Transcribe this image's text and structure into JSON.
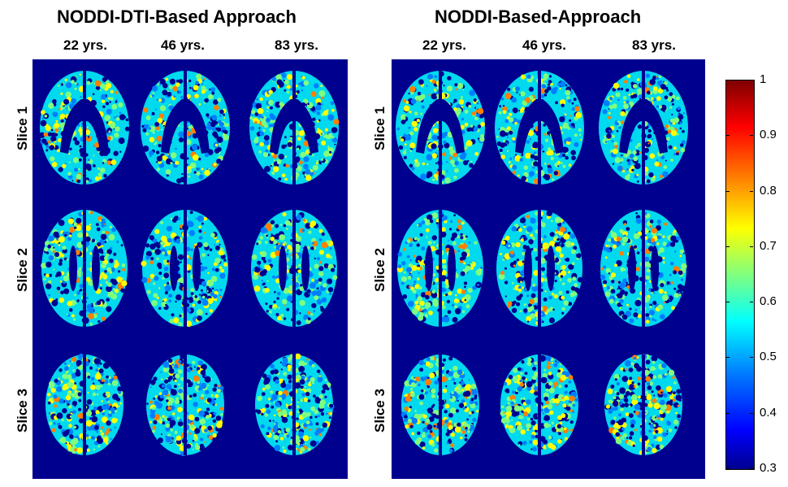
{
  "panels": [
    {
      "title": "NODDI-DTI-Based Approach",
      "columns": [
        "22 yrs.",
        "46 yrs.",
        "83 yrs."
      ],
      "rows": [
        "Slice 1",
        "Slice 2",
        "Slice 3"
      ]
    },
    {
      "title": "NODDI-Based-Approach",
      "columns": [
        "22 yrs.",
        "46 yrs.",
        "83 yrs."
      ],
      "rows": [
        "Slice 1",
        "Slice 2",
        "Slice 3"
      ]
    }
  ],
  "colorbar": {
    "min": 0.3,
    "max": 1,
    "ticks": [
      "1",
      "0.9",
      "0.8",
      "0.7",
      "0.6",
      "0.5",
      "0.4",
      "0.3"
    ]
  },
  "colors": {
    "background": "#00008f",
    "jet": [
      "#00008f",
      "#0000ff",
      "#007fff",
      "#00ffff",
      "#7fff7f",
      "#ffff00",
      "#ff7f00",
      "#ff0000",
      "#7f0000"
    ]
  }
}
